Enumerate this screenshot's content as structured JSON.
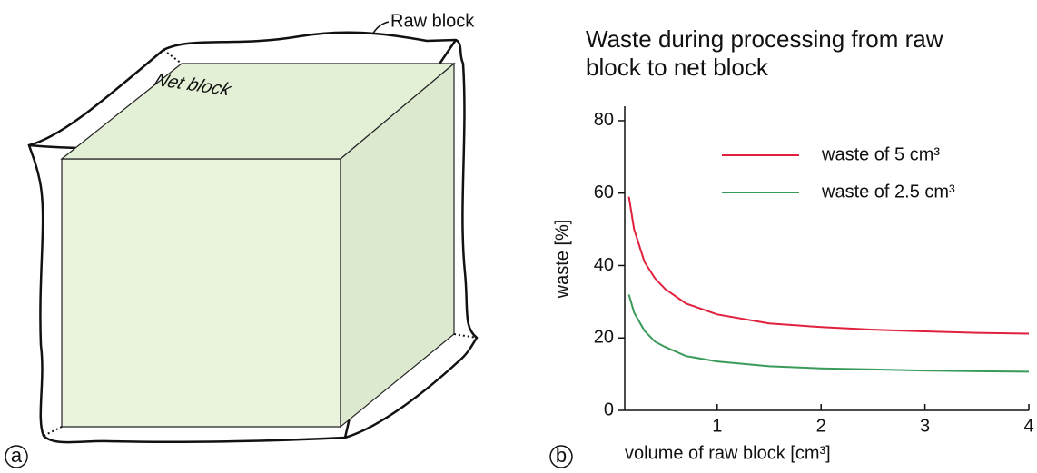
{
  "diagram": {
    "raw_label": "Raw block",
    "net_label": "Net block"
  },
  "panel_labels": [
    "a",
    "b"
  ],
  "chart_data": {
    "type": "line",
    "title": "Waste during processing from raw block to net block",
    "x_label": "volume of raw block [cm³]",
    "y_label": "waste [%]",
    "x": [
      0.15,
      0.2,
      0.3,
      0.4,
      0.5,
      0.7,
      1,
      1.5,
      2,
      2.5,
      3,
      3.5,
      4
    ],
    "series": [
      {
        "name": "waste of 5 cm³",
        "color": "#e0203c",
        "values": [
          59,
          50,
          41,
          36.5,
          33.5,
          29.5,
          26.5,
          24,
          23,
          22.3,
          21.8,
          21.4,
          21.2
        ]
      },
      {
        "name": "waste of 2.5 cm³",
        "color": "#3a9a5a",
        "values": [
          32,
          27,
          22,
          19,
          17.5,
          15,
          13.5,
          12.2,
          11.6,
          11.3,
          11,
          10.8,
          10.7
        ]
      }
    ],
    "xlim": [
      0.11,
      4
    ],
    "ylim": [
      0,
      84
    ],
    "xticks": [
      1,
      2,
      3,
      4
    ],
    "yticks": [
      0,
      20,
      40,
      60,
      80
    ],
    "grid": false,
    "legend": "upper right"
  }
}
